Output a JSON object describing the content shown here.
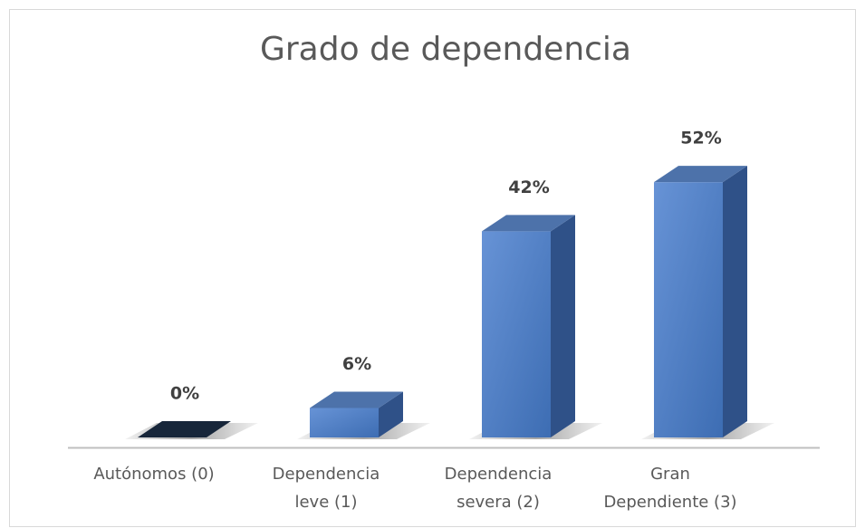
{
  "chart_data": {
    "type": "bar3d",
    "title": "Grado de dependencia",
    "categories": [
      "Autónomos (0)",
      "Dependencia leve (1)",
      "Dependencia severa (2)",
      "Gran Dependiente (3)"
    ],
    "values": [
      0,
      6,
      42,
      52
    ],
    "value_labels": [
      "0%",
      "6%",
      "42%",
      "52%"
    ],
    "color": "#4a7cc4"
  }
}
